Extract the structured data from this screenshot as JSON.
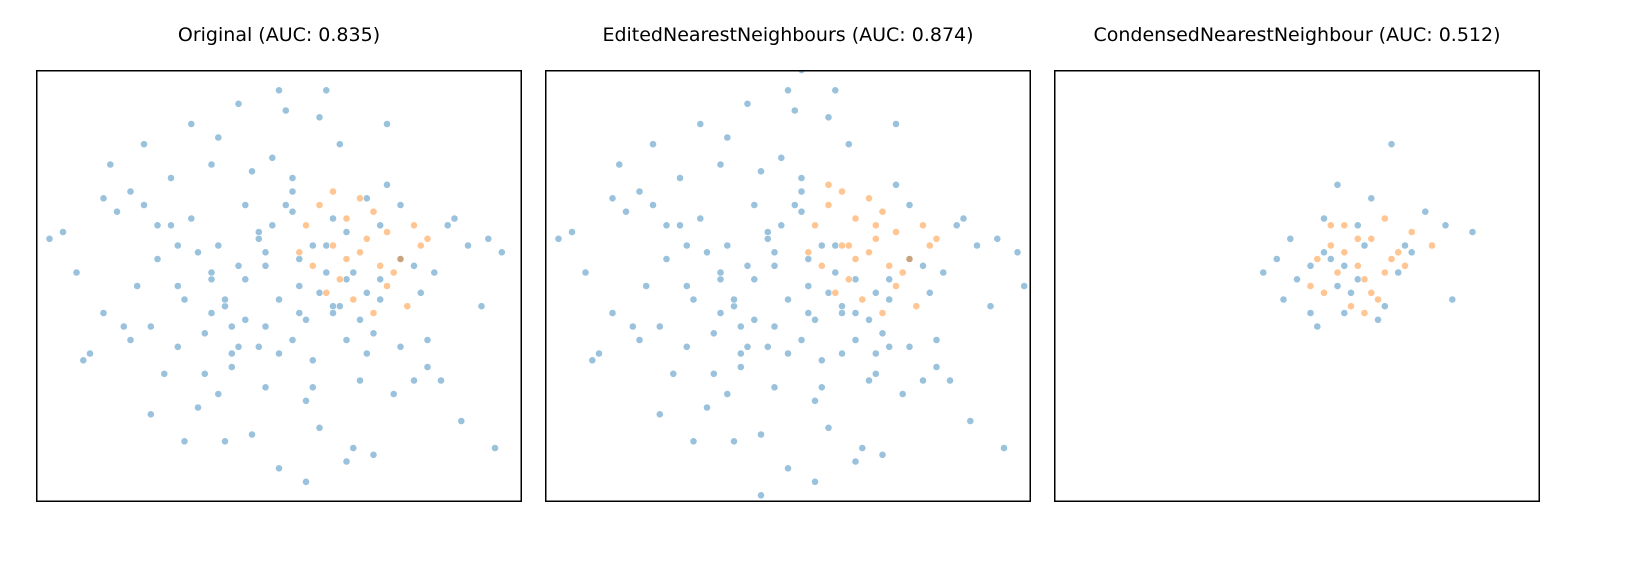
{
  "colors": {
    "class0": "#1f77b4",
    "class1": "#ff7f0e",
    "frame": "#000000"
  },
  "chart_data": [
    {
      "type": "scatter",
      "title": "Original (AUC: 0.835)",
      "xlim": [
        -3.6,
        3.6
      ],
      "ylim": [
        -3.2,
        3.2
      ],
      "grid": false,
      "axes_ticks": false,
      "series": [
        {
          "class": 0,
          "color": "#1f77b4",
          "x": [
            -3.4,
            -3.0,
            -2.6,
            -2.2,
            -1.8,
            -1.4,
            -1.0,
            -0.6,
            -0.2,
            0.2,
            0.6,
            1.0,
            1.4,
            1.8,
            2.2,
            2.6,
            3.0,
            3.3,
            -2.5,
            -2.0,
            -1.5,
            -1.0,
            -0.5,
            0.0,
            0.5,
            1.0,
            1.5,
            2.0,
            2.5,
            -2.2,
            -1.7,
            -1.2,
            -0.7,
            -0.2,
            0.3,
            0.8,
            1.3,
            1.8,
            2.3,
            -1.8,
            -1.3,
            -0.8,
            -0.3,
            0.2,
            0.7,
            1.2,
            1.7,
            -1.5,
            -1.0,
            -0.5,
            0.0,
            0.5,
            1.0,
            1.5,
            -1.2,
            -0.7,
            -0.2,
            0.3,
            0.8,
            1.3,
            -0.8,
            -0.3,
            0.2,
            0.7,
            -2.8,
            -2.3,
            -1.9,
            -1.6,
            -1.1,
            -0.9,
            -0.4,
            0.1,
            0.4,
            0.9,
            1.1,
            1.6,
            2.1,
            2.7,
            3.1,
            -2.0,
            -1.4,
            -0.6,
            0.0,
            0.6,
            1.4,
            2.0,
            -1.6,
            -0.9,
            -0.1,
            0.5,
            1.2,
            -0.5,
            0.3,
            0.9,
            -1.1,
            1.6,
            2.4,
            -2.6,
            -0.3,
            0.0,
            1.0,
            -0.8,
            0.4,
            -3.2,
            -2.9,
            -2.4,
            -1.3,
            -0.4,
            0.7,
            1.8,
            2.8,
            3.2,
            -0.7,
            0.1,
            0.6,
            -1.9,
            1.3,
            2.2,
            -2.1,
            -0.2,
            0.2,
            -1.0,
            1.1,
            -1.5,
            -0.6,
            0.4,
            1.5,
            -0.9,
            0.8,
            -0.1
          ],
          "y": [
            0.7,
            0.2,
            -0.4,
            1.4,
            0.9,
            -0.2,
            1.8,
            0.3,
            -0.6,
            1.1,
            -0.1,
            0.8,
            -0.7,
            0.4,
            -1.2,
            1.0,
            -0.3,
            0.5,
            1.8,
            1.2,
            0.6,
            0.1,
            -0.5,
            -1.0,
            -1.5,
            -0.8,
            -0.2,
            0.3,
            0.9,
            -0.8,
            -1.3,
            -1.8,
            -1.0,
            0.5,
            0.0,
            -0.4,
            1.3,
            -0.9,
            0.2,
            0.4,
            1.0,
            -0.3,
            0.8,
            1.6,
            0.6,
            -0.5,
            -1.6,
            -0.9,
            0.2,
            1.2,
            -0.2,
            0.6,
            0.1,
            0.9,
            0.5,
            -0.6,
            0.3,
            -0.4,
            1.0,
            -0.1,
            -0.2,
            0.7,
            -0.8,
            0.2,
            -1.0,
            -0.6,
            -1.9,
            0.9,
            -1.3,
            2.2,
            -2.2,
            2.6,
            -1.7,
            2.1,
            -2.4,
            2.4,
            -0.1,
            -2.0,
            0.7,
            2.1,
            -2.3,
            2.7,
            -2.7,
            2.5,
            -2.5,
            -1.4,
            1.6,
            -1.6,
            1.9,
            -1.1,
            -1.4,
            0.1,
            0.4,
            -0.3,
            -0.7,
            1.5,
            -1.4,
            1.3,
            -0.9,
            2.9,
            -2.6,
            -2.3,
            -2.9,
            0.8,
            -1.1,
            1.1,
            2.4,
            1.7,
            2.9,
            1.2,
            0.6,
            -2.4,
            -1.2,
            1.2,
            -2.1,
            -0.6,
            -1.0,
            -0.8,
            0.0,
            -1.5,
            1.4,
            -0.4,
            0.2,
            0.0,
            -0.9,
            -0.5,
            0.1,
            0.6,
            -0.3,
            0.9
          ]
        },
        {
          "class": 1,
          "color": "#ff7f0e",
          "x": [
            0.4,
            0.6,
            0.8,
            1.0,
            1.2,
            1.4,
            1.6,
            1.8,
            2.0,
            0.5,
            0.9,
            1.3,
            1.7,
            2.1,
            0.7,
            1.1,
            1.5,
            1.9,
            0.3,
            0.8,
            1.2,
            1.6,
            1.0,
            1.4,
            2.2
          ],
          "y": [
            0.9,
            1.2,
            0.6,
            1.0,
            0.5,
            1.1,
            0.8,
            0.4,
            0.9,
            0.3,
            0.1,
            0.7,
            0.2,
            0.6,
            -0.1,
            -0.2,
            0.3,
            -0.3,
            0.5,
            1.4,
            1.3,
            0.0,
            0.4,
            -0.4,
            0.7
          ]
        }
      ]
    },
    {
      "type": "scatter",
      "title": "EditedNearestNeighbours (AUC: 0.874)",
      "xlim": [
        -3.6,
        3.6
      ],
      "ylim": [
        -3.2,
        3.2
      ],
      "grid": false,
      "axes_ticks": false,
      "series": [
        {
          "class": 0,
          "color": "#1f77b4",
          "x": [
            -3.4,
            -3.0,
            -2.6,
            -2.2,
            -1.8,
            -1.4,
            -1.0,
            -0.6,
            -0.2,
            0.2,
            0.6,
            1.0,
            1.4,
            1.8,
            2.2,
            2.6,
            3.0,
            3.4,
            -2.5,
            -2.0,
            -1.5,
            -1.0,
            -0.5,
            0.0,
            0.5,
            1.0,
            1.5,
            2.0,
            2.5,
            -2.2,
            -1.7,
            -1.2,
            -0.7,
            -0.2,
            0.3,
            0.8,
            1.3,
            1.8,
            2.3,
            -1.8,
            -1.3,
            -0.8,
            -0.3,
            0.2,
            0.7,
            1.2,
            1.7,
            -1.5,
            -1.0,
            -0.5,
            0.0,
            0.5,
            1.0,
            1.5,
            -1.2,
            -0.7,
            -0.2,
            0.3,
            0.8,
            1.3,
            -0.8,
            -0.3,
            0.2,
            0.7,
            -2.8,
            -2.3,
            -1.9,
            -1.6,
            -1.1,
            -0.9,
            -0.4,
            0.1,
            0.4,
            0.9,
            1.1,
            1.6,
            2.1,
            2.7,
            3.1,
            -2.0,
            -1.4,
            -0.6,
            0.0,
            0.6,
            1.4,
            2.0,
            -1.6,
            -0.9,
            -0.1,
            0.5,
            1.2,
            -0.5,
            0.3,
            -1.1,
            1.6,
            2.4,
            -2.6,
            -0.3,
            0.0,
            1.0,
            -0.8,
            0.4,
            -3.2,
            -2.9,
            -2.4,
            -1.3,
            -0.4,
            0.7,
            1.8,
            2.8,
            3.2,
            3.5,
            -0.7,
            0.1,
            0.6,
            -1.9,
            1.3,
            2.2,
            -2.1,
            -0.2,
            0.2,
            -1.0,
            -1.5,
            -0.6,
            0.4,
            1.5,
            -0.9,
            0.8,
            -0.1,
            -0.4,
            0.2
          ],
          "y": [
            0.7,
            0.2,
            -0.4,
            1.4,
            0.9,
            -0.2,
            1.8,
            0.3,
            -0.6,
            1.1,
            -0.1,
            -0.4,
            -0.7,
            0.4,
            -1.2,
            1.0,
            -0.3,
            0.5,
            1.8,
            1.2,
            0.6,
            0.1,
            -0.5,
            -1.0,
            -1.5,
            -0.8,
            -0.2,
            0.3,
            0.9,
            -0.8,
            -1.3,
            -1.8,
            -1.0,
            0.5,
            0.0,
            -0.4,
            -1.3,
            -0.9,
            0.2,
            0.4,
            1.0,
            -0.3,
            0.8,
            1.6,
            0.6,
            -0.5,
            -1.6,
            -0.9,
            0.2,
            1.2,
            -0.2,
            0.6,
            0.1,
            -0.9,
            0.5,
            -0.6,
            0.3,
            -0.4,
            -1.0,
            -0.1,
            -0.2,
            0.7,
            -0.8,
            0.2,
            -1.0,
            -0.6,
            -1.9,
            0.9,
            -1.3,
            2.2,
            -2.2,
            2.6,
            -1.7,
            2.1,
            -2.4,
            2.4,
            -0.1,
            -2.0,
            0.7,
            2.1,
            -2.3,
            2.7,
            -2.7,
            2.5,
            -2.5,
            -1.4,
            1.6,
            -1.6,
            1.9,
            -1.1,
            -1.4,
            0.1,
            0.4,
            -0.7,
            1.5,
            -1.4,
            1.3,
            -0.9,
            2.9,
            -2.6,
            -2.3,
            -2.9,
            0.8,
            -1.1,
            1.1,
            2.4,
            1.7,
            2.9,
            1.2,
            0.6,
            -2.4,
            0.0,
            -1.2,
            1.2,
            -2.1,
            -0.6,
            -1.0,
            -0.8,
            0.0,
            -1.5,
            1.4,
            -0.4,
            0.0,
            -0.9,
            -0.5,
            0.1,
            0.6,
            -0.3,
            0.9,
            -3.1,
            3.2
          ]
        },
        {
          "class": 1,
          "color": "#ff7f0e",
          "x": [
            0.4,
            0.6,
            0.8,
            1.0,
            1.2,
            1.4,
            1.6,
            1.8,
            2.0,
            0.5,
            0.9,
            1.3,
            1.7,
            2.1,
            0.7,
            1.1,
            1.5,
            1.9,
            0.3,
            0.8,
            1.2,
            1.6,
            1.0,
            1.4,
            2.2,
            0.6,
            1.3,
            0.9
          ],
          "y": [
            0.9,
            1.2,
            0.6,
            1.0,
            0.5,
            1.1,
            0.8,
            0.4,
            0.9,
            0.3,
            0.1,
            0.7,
            0.2,
            0.6,
            -0.1,
            -0.2,
            0.3,
            -0.3,
            0.5,
            1.4,
            1.3,
            0.0,
            0.4,
            -0.4,
            0.7,
            1.5,
            0.9,
            0.6
          ]
        }
      ]
    },
    {
      "type": "scatter",
      "title": "CondensedNearestNeighbour (AUC: 0.512)",
      "xlim": [
        -3.6,
        3.6
      ],
      "ylim": [
        -3.2,
        3.2
      ],
      "grid": false,
      "axes_ticks": false,
      "series": [
        {
          "class": 0,
          "color": "#1f77b4",
          "x": [
            1.4,
            0.6,
            -0.3,
            0.2,
            0.9,
            1.7,
            2.3,
            2.6,
            -0.1,
            0.4,
            1.1,
            0.7,
            1.5,
            0.3,
            -0.5,
            0.8,
            1.2,
            0.0,
            1.9,
            2.2,
            0.5,
            1.0,
            -0.2,
            0.6,
            1.3,
            0.9,
            0.4,
            0.7,
            1.6,
            0.2
          ],
          "y": [
            2.1,
            1.5,
            0.4,
            -0.4,
            0.1,
            0.5,
            -0.2,
            0.8,
            0.7,
            1.0,
            1.3,
            0.3,
            0.2,
            -0.6,
            0.2,
            -0.1,
            -0.5,
            0.1,
            1.1,
            0.9,
            0.4,
            0.6,
            -0.2,
            0.0,
            -0.3,
            0.9,
            0.5,
            -0.4,
            0.6,
            0.3
          ]
        },
        {
          "class": 1,
          "color": "#ff7f0e",
          "x": [
            0.3,
            0.5,
            0.7,
            0.9,
            1.1,
            1.3,
            1.5,
            1.7,
            0.4,
            0.6,
            0.8,
            1.0,
            1.2,
            1.4,
            0.2,
            0.9,
            1.1,
            1.3,
            0.7,
            1.6,
            2.0,
            0.5,
            1.0
          ],
          "y": [
            0.4,
            0.6,
            0.9,
            0.3,
            0.7,
            1.0,
            0.5,
            0.8,
            -0.1,
            0.2,
            -0.3,
            0.1,
            -0.2,
            0.4,
            0.0,
            0.7,
            -0.1,
            0.2,
            0.5,
            0.3,
            0.6,
            0.9,
            -0.4
          ]
        }
      ]
    }
  ]
}
